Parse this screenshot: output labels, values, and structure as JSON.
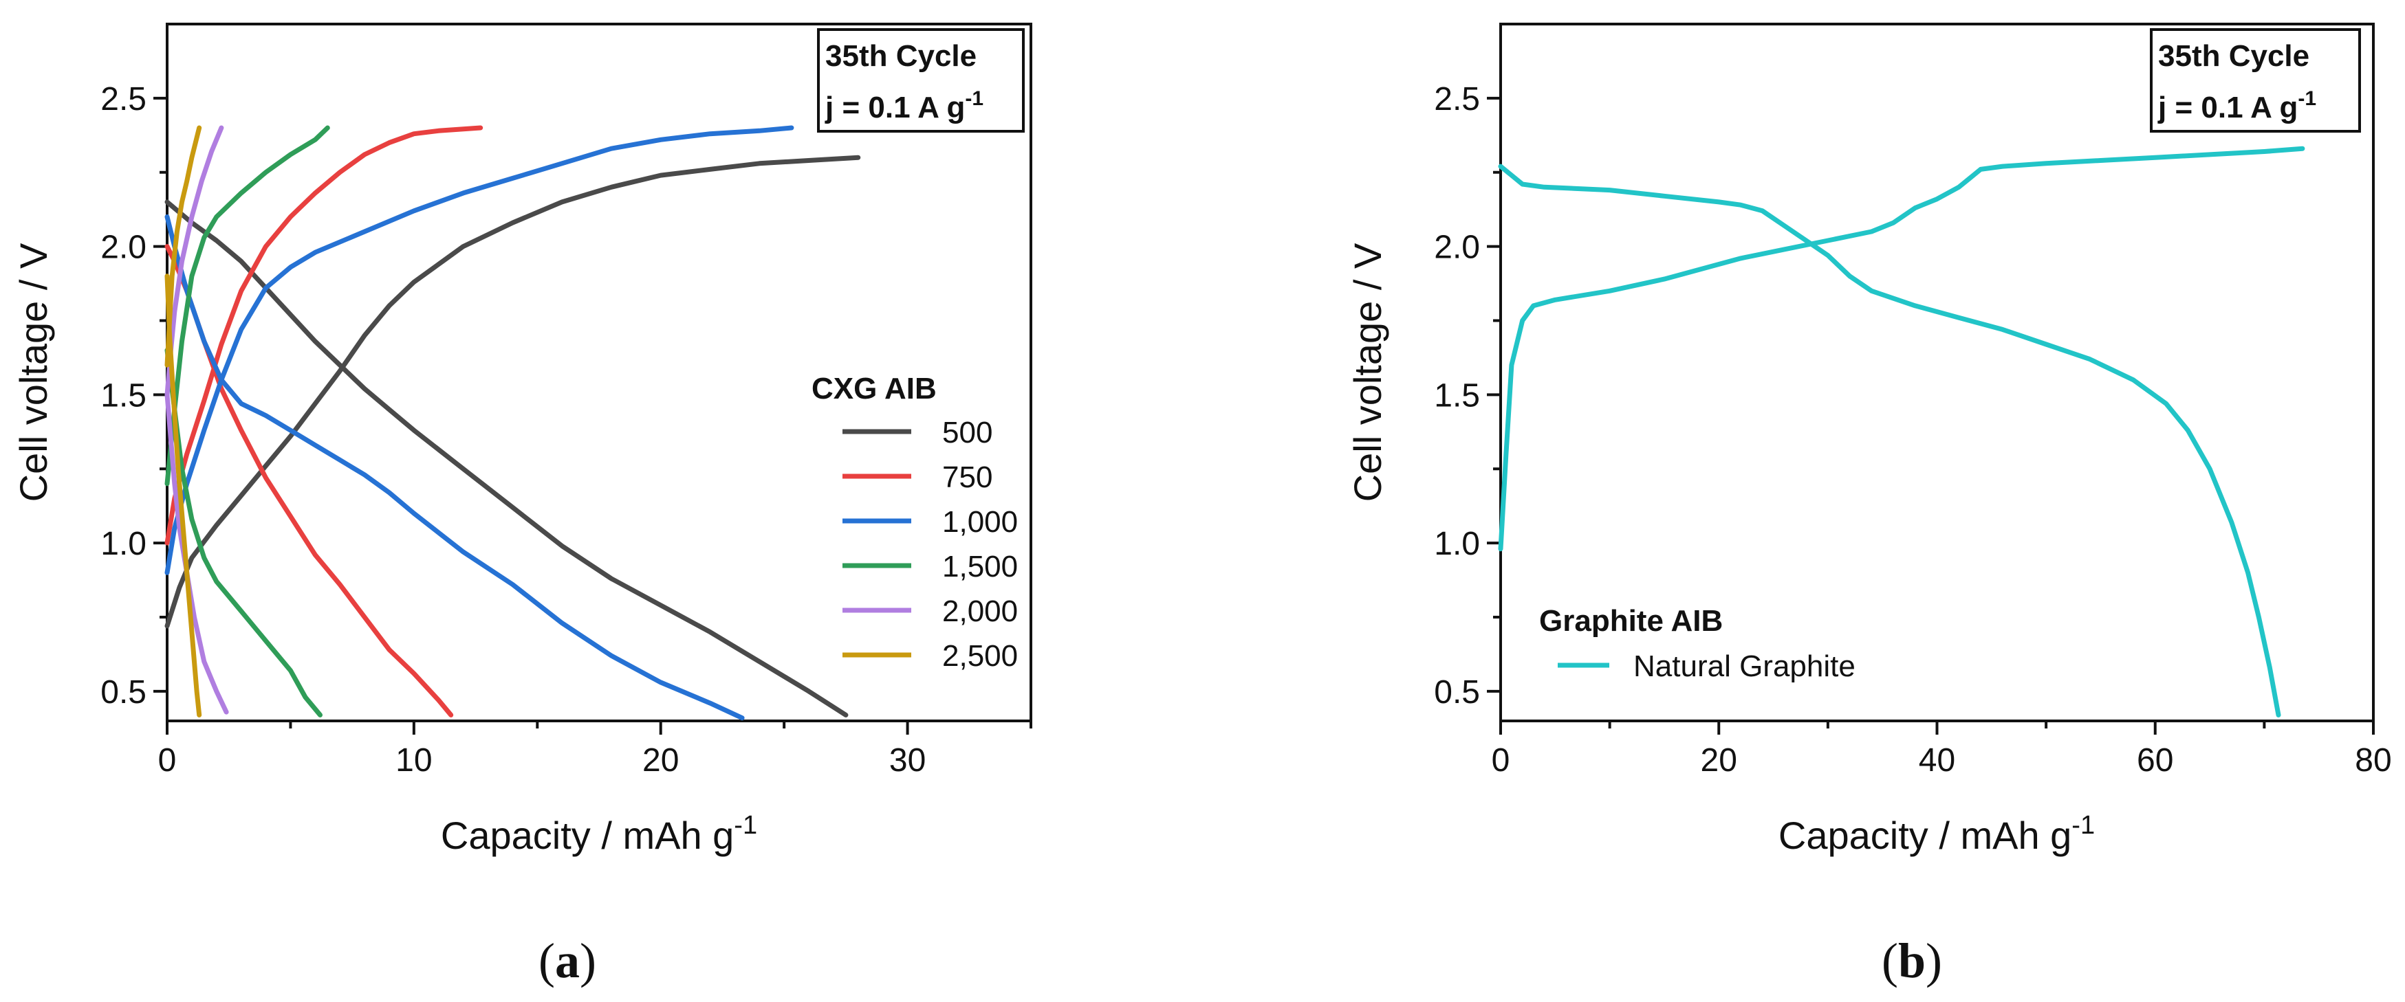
{
  "chart_data": [
    {
      "panel": "a",
      "type": "line",
      "xlabel": "Capacity / mAh g",
      "xlabel_sup": "-1",
      "ylabel": "Cell voltage / V",
      "xlim": [
        0,
        35
      ],
      "ylim": [
        0.4,
        2.75
      ],
      "xticks": [
        "0",
        "10",
        "20",
        "30"
      ],
      "yticks": [
        "0.5",
        "1.0",
        "1.5",
        "2.0",
        "2.5"
      ],
      "info_box": {
        "line1": "35th Cycle",
        "line2": "j = 0.1 A g",
        "line2_sup": "-1"
      },
      "legend_title": "CXG AIB",
      "legend_position": "right",
      "series": [
        {
          "name": "500",
          "color": "#4a4a4a",
          "charge": [
            [
              0,
              0.72
            ],
            [
              0.5,
              0.85
            ],
            [
              1,
              0.95
            ],
            [
              2,
              1.06
            ],
            [
              3,
              1.16
            ],
            [
              4,
              1.26
            ],
            [
              5,
              1.36
            ],
            [
              6,
              1.47
            ],
            [
              7,
              1.58
            ],
            [
              8,
              1.7
            ],
            [
              9,
              1.8
            ],
            [
              10,
              1.88
            ],
            [
              12,
              2.0
            ],
            [
              14,
              2.08
            ],
            [
              16,
              2.15
            ],
            [
              18,
              2.2
            ],
            [
              20,
              2.24
            ],
            [
              22,
              2.26
            ],
            [
              24,
              2.28
            ],
            [
              26,
              2.29
            ],
            [
              28,
              2.3
            ]
          ],
          "discharge": [
            [
              0,
              2.15
            ],
            [
              1,
              2.08
            ],
            [
              2,
              2.02
            ],
            [
              3,
              1.95
            ],
            [
              4,
              1.86
            ],
            [
              5,
              1.77
            ],
            [
              6,
              1.68
            ],
            [
              7,
              1.6
            ],
            [
              8,
              1.52
            ],
            [
              9,
              1.45
            ],
            [
              10,
              1.38
            ],
            [
              12,
              1.25
            ],
            [
              14,
              1.12
            ],
            [
              16,
              0.99
            ],
            [
              18,
              0.88
            ],
            [
              20,
              0.79
            ],
            [
              22,
              0.7
            ],
            [
              24,
              0.6
            ],
            [
              26,
              0.5
            ],
            [
              27.5,
              0.42
            ]
          ]
        },
        {
          "name": "750",
          "color": "#e8403f",
          "charge": [
            [
              0,
              1.0
            ],
            [
              0.3,
              1.15
            ],
            [
              0.8,
              1.3
            ],
            [
              1.5,
              1.48
            ],
            [
              2.2,
              1.67
            ],
            [
              3,
              1.85
            ],
            [
              4,
              2.0
            ],
            [
              5,
              2.1
            ],
            [
              6,
              2.18
            ],
            [
              7,
              2.25
            ],
            [
              8,
              2.31
            ],
            [
              9,
              2.35
            ],
            [
              10,
              2.38
            ],
            [
              11,
              2.39
            ],
            [
              12.7,
              2.4
            ]
          ],
          "discharge": [
            [
              0,
              2.0
            ],
            [
              0.3,
              1.95
            ],
            [
              0.8,
              1.85
            ],
            [
              1.5,
              1.68
            ],
            [
              2.2,
              1.52
            ],
            [
              3,
              1.38
            ],
            [
              4,
              1.22
            ],
            [
              5,
              1.09
            ],
            [
              6,
              0.96
            ],
            [
              7,
              0.86
            ],
            [
              8,
              0.75
            ],
            [
              9,
              0.64
            ],
            [
              10,
              0.56
            ],
            [
              11,
              0.47
            ],
            [
              11.5,
              0.42
            ]
          ]
        },
        {
          "name": "1,000",
          "color": "#2672d4",
          "charge": [
            [
              0,
              0.9
            ],
            [
              0.3,
              1.05
            ],
            [
              0.8,
              1.2
            ],
            [
              1.5,
              1.38
            ],
            [
              2.2,
              1.55
            ],
            [
              3,
              1.72
            ],
            [
              4,
              1.86
            ],
            [
              5,
              1.93
            ],
            [
              6,
              1.98
            ],
            [
              8,
              2.05
            ],
            [
              10,
              2.12
            ],
            [
              12,
              2.18
            ],
            [
              14,
              2.23
            ],
            [
              16,
              2.28
            ],
            [
              18,
              2.33
            ],
            [
              20,
              2.36
            ],
            [
              22,
              2.38
            ],
            [
              24,
              2.39
            ],
            [
              25.3,
              2.4
            ]
          ],
          "discharge": [
            [
              0,
              2.1
            ],
            [
              0.3,
              2.0
            ],
            [
              0.8,
              1.85
            ],
            [
              1.5,
              1.68
            ],
            [
              2.2,
              1.55
            ],
            [
              3,
              1.47
            ],
            [
              4,
              1.43
            ],
            [
              5,
              1.38
            ],
            [
              6,
              1.33
            ],
            [
              7,
              1.28
            ],
            [
              8,
              1.23
            ],
            [
              9,
              1.17
            ],
            [
              10,
              1.1
            ],
            [
              12,
              0.97
            ],
            [
              14,
              0.86
            ],
            [
              16,
              0.73
            ],
            [
              18,
              0.62
            ],
            [
              20,
              0.53
            ],
            [
              22,
              0.46
            ],
            [
              23.3,
              0.41
            ]
          ]
        },
        {
          "name": "1,500",
          "color": "#2f9d58",
          "charge": [
            [
              0,
              1.2
            ],
            [
              0.3,
              1.45
            ],
            [
              0.6,
              1.68
            ],
            [
              1,
              1.9
            ],
            [
              1.5,
              2.03
            ],
            [
              2,
              2.1
            ],
            [
              3,
              2.18
            ],
            [
              4,
              2.25
            ],
            [
              5,
              2.31
            ],
            [
              6,
              2.36
            ],
            [
              6.5,
              2.4
            ]
          ],
          "discharge": [
            [
              0,
              1.65
            ],
            [
              0.3,
              1.45
            ],
            [
              0.6,
              1.25
            ],
            [
              1,
              1.08
            ],
            [
              1.5,
              0.95
            ],
            [
              2,
              0.87
            ],
            [
              3,
              0.77
            ],
            [
              4,
              0.67
            ],
            [
              5,
              0.57
            ],
            [
              5.6,
              0.48
            ],
            [
              6.2,
              0.42
            ]
          ]
        },
        {
          "name": "2,000",
          "color": "#b07ee0",
          "charge": [
            [
              0,
              1.5
            ],
            [
              0.15,
              1.65
            ],
            [
              0.3,
              1.78
            ],
            [
              0.6,
              1.95
            ],
            [
              1,
              2.1
            ],
            [
              1.4,
              2.22
            ],
            [
              1.8,
              2.32
            ],
            [
              2.2,
              2.4
            ]
          ],
          "discharge": [
            [
              0,
              1.5
            ],
            [
              0.15,
              1.35
            ],
            [
              0.3,
              1.2
            ],
            [
              0.5,
              1.05
            ],
            [
              0.8,
              0.9
            ],
            [
              1.1,
              0.75
            ],
            [
              1.5,
              0.6
            ],
            [
              2,
              0.5
            ],
            [
              2.4,
              0.43
            ]
          ]
        },
        {
          "name": "2,500",
          "color": "#c99a0f",
          "charge": [
            [
              0,
              1.6
            ],
            [
              0.1,
              1.75
            ],
            [
              0.2,
              1.9
            ],
            [
              0.4,
              2.05
            ],
            [
              0.6,
              2.15
            ],
            [
              0.8,
              2.22
            ],
            [
              1,
              2.3
            ],
            [
              1.3,
              2.4
            ]
          ],
          "discharge": [
            [
              0,
              1.9
            ],
            [
              0.1,
              1.7
            ],
            [
              0.25,
              1.5
            ],
            [
              0.45,
              1.25
            ],
            [
              0.65,
              1.05
            ],
            [
              0.85,
              0.85
            ],
            [
              1.05,
              0.65
            ],
            [
              1.2,
              0.5
            ],
            [
              1.3,
              0.42
            ]
          ]
        }
      ]
    },
    {
      "panel": "b",
      "type": "line",
      "xlabel": "Capacity / mAh g",
      "xlabel_sup": "-1",
      "ylabel": "Cell voltage / V",
      "xlim": [
        0,
        80
      ],
      "ylim": [
        0.4,
        2.75
      ],
      "xticks": [
        "0",
        "20",
        "40",
        "60",
        "80"
      ],
      "yticks": [
        "0.5",
        "1.0",
        "1.5",
        "2.0",
        "2.5"
      ],
      "info_box": {
        "line1": "35th Cycle",
        "line2": "j = 0.1 A g",
        "line2_sup": "-1"
      },
      "legend_title": "Graphite AIB",
      "legend_position": "bottom-left",
      "series": [
        {
          "name": "Natural Graphite",
          "color": "#22c4c7",
          "charge": [
            [
              0,
              0.98
            ],
            [
              0.5,
              1.3
            ],
            [
              1,
              1.6
            ],
            [
              2,
              1.75
            ],
            [
              3,
              1.8
            ],
            [
              5,
              1.82
            ],
            [
              10,
              1.85
            ],
            [
              15,
              1.89
            ],
            [
              20,
              1.94
            ],
            [
              22,
              1.96
            ],
            [
              26,
              1.99
            ],
            [
              30,
              2.02
            ],
            [
              34,
              2.05
            ],
            [
              36,
              2.08
            ],
            [
              38,
              2.13
            ],
            [
              40,
              2.16
            ],
            [
              42,
              2.2
            ],
            [
              43,
              2.23
            ],
            [
              44,
              2.26
            ],
            [
              46,
              2.27
            ],
            [
              50,
              2.28
            ],
            [
              55,
              2.29
            ],
            [
              60,
              2.3
            ],
            [
              65,
              2.31
            ],
            [
              70,
              2.32
            ],
            [
              73.5,
              2.33
            ]
          ],
          "discharge": [
            [
              0,
              2.27
            ],
            [
              1,
              2.24
            ],
            [
              2,
              2.21
            ],
            [
              4,
              2.2
            ],
            [
              10,
              2.19
            ],
            [
              15,
              2.17
            ],
            [
              20,
              2.15
            ],
            [
              22,
              2.14
            ],
            [
              24,
              2.12
            ],
            [
              26,
              2.07
            ],
            [
              28,
              2.02
            ],
            [
              30,
              1.97
            ],
            [
              32,
              1.9
            ],
            [
              34,
              1.85
            ],
            [
              38,
              1.8
            ],
            [
              42,
              1.76
            ],
            [
              46,
              1.72
            ],
            [
              50,
              1.67
            ],
            [
              54,
              1.62
            ],
            [
              58,
              1.55
            ],
            [
              61,
              1.47
            ],
            [
              63,
              1.38
            ],
            [
              65,
              1.25
            ],
            [
              67,
              1.07
            ],
            [
              68.5,
              0.9
            ],
            [
              69.5,
              0.75
            ],
            [
              70.5,
              0.58
            ],
            [
              71.3,
              0.42
            ]
          ]
        }
      ]
    }
  ],
  "captions": {
    "a": "a",
    "b": "b"
  }
}
